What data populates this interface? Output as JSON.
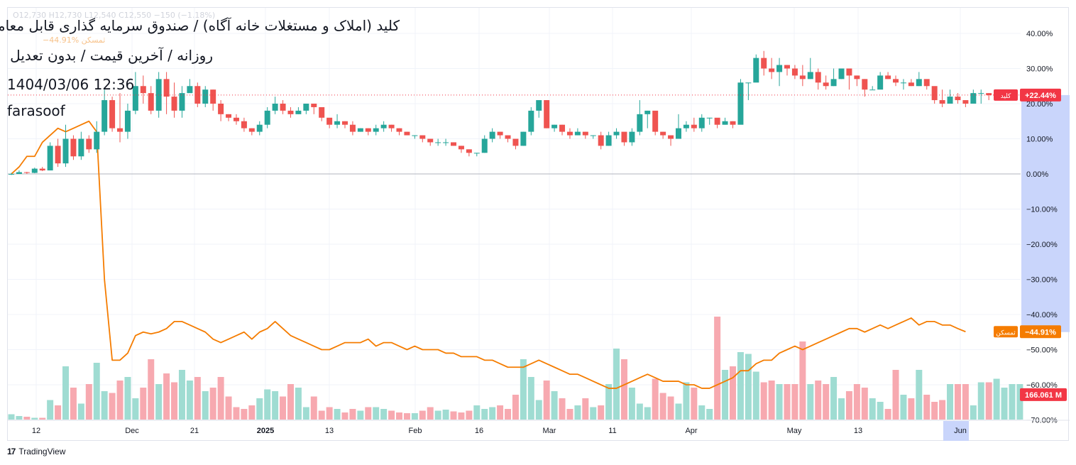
{
  "header": {
    "title": "کلید (املاک و مستغلات خانه آگاه) / صندوق سرمایه گذاری قابل معامله",
    "subtitle": "روزانه / آخرین قیمت / بدون تعدیل",
    "timestamp": "1404/03/06 12:36",
    "author": "farasoof",
    "ohlc_faded": "O12,730  H12,730  L12,540  C12,550  −150 (−1.18%)",
    "compare_faded": "−44.91%  ثمسکن"
  },
  "branding": {
    "name": "TradingView"
  },
  "colors": {
    "up": "#26a69a",
    "down": "#ef5350",
    "vol_up": "#9fdcd2",
    "vol_down": "#f7a9b0",
    "compare_line": "#f57c00",
    "badge_red": "#f23645",
    "badge_orange": "#f57c00",
    "shade": "#c9d5fb"
  },
  "chart_data": {
    "type": "candlestick",
    "y_axis": {
      "unit": "percent",
      "ylim": [
        -70,
        45
      ],
      "ticks": [
        "40.00%",
        "30.00%",
        "20.00%",
        "10.00%",
        "0.00%",
        "−10.00%",
        "−20.00%",
        "−30.00%",
        "−40.00%",
        "−50.00%",
        "−60.00%",
        "−70.00%"
      ]
    },
    "x_ticks": [
      "12",
      "Dec",
      "21",
      "2025",
      "13",
      "Feb",
      "16",
      "Mar",
      "11",
      "Apr",
      "May",
      "13",
      "Jun"
    ],
    "candles": [
      [
        0,
        0,
        0.3,
        -0.3
      ],
      [
        0,
        0.5,
        1,
        0
      ],
      [
        0.5,
        0.3,
        0.6,
        0
      ],
      [
        0.3,
        1.5,
        1.8,
        0.2
      ],
      [
        1.5,
        1,
        2,
        0.8
      ],
      [
        1,
        8,
        9,
        1
      ],
      [
        8,
        3,
        10,
        2
      ],
      [
        3,
        10,
        14,
        2
      ],
      [
        10,
        5,
        11,
        4
      ],
      [
        5,
        10,
        12,
        4
      ],
      [
        10,
        7,
        11,
        6
      ],
      [
        7,
        12,
        15,
        6
      ],
      [
        12,
        21,
        24,
        11
      ],
      [
        21,
        13,
        22,
        12
      ],
      [
        13,
        12,
        23,
        9
      ],
      [
        12,
        18,
        20,
        10
      ],
      [
        18,
        25,
        29,
        17
      ],
      [
        25,
        23,
        28,
        20
      ],
      [
        23,
        18,
        25,
        17
      ],
      [
        18,
        27,
        29,
        16
      ],
      [
        27,
        22,
        29,
        17
      ],
      [
        22,
        18,
        26,
        16
      ],
      [
        18,
        23,
        25,
        16
      ],
      [
        23,
        25,
        27,
        24
      ],
      [
        25,
        20,
        26,
        19
      ],
      [
        20,
        24,
        25,
        19
      ],
      [
        24,
        20,
        24,
        18
      ],
      [
        20,
        17,
        21,
        15
      ],
      [
        17,
        16,
        17,
        15
      ],
      [
        16,
        15,
        17,
        14
      ],
      [
        15,
        13,
        16,
        12
      ],
      [
        13,
        12,
        13,
        11
      ],
      [
        12,
        14,
        15,
        11
      ],
      [
        14,
        18,
        19,
        13
      ],
      [
        18,
        20,
        22,
        17
      ],
      [
        20,
        18,
        21,
        17
      ],
      [
        18,
        17,
        19,
        16
      ],
      [
        17,
        18,
        19,
        17
      ],
      [
        18,
        20,
        20,
        17
      ],
      [
        20,
        19,
        20,
        17
      ],
      [
        19,
        16,
        17,
        15
      ],
      [
        16,
        14,
        14,
        13
      ],
      [
        14,
        15,
        17,
        13
      ],
      [
        15,
        14,
        15,
        13
      ],
      [
        14,
        12,
        15,
        11
      ],
      [
        12,
        13,
        13,
        12
      ],
      [
        13,
        12,
        13,
        11
      ],
      [
        12,
        13,
        14,
        11
      ],
      [
        13,
        14,
        15,
        12
      ],
      [
        14,
        13,
        14,
        12
      ],
      [
        13,
        12,
        13,
        11
      ],
      [
        12,
        11,
        12,
        11
      ],
      [
        11,
        11,
        11,
        10
      ],
      [
        11,
        10,
        11,
        9
      ],
      [
        10,
        9,
        10,
        8
      ],
      [
        9,
        9,
        10,
        8
      ],
      [
        9,
        9,
        10,
        8
      ],
      [
        9,
        8,
        9,
        8
      ],
      [
        8,
        7,
        8,
        6
      ],
      [
        7,
        6,
        7,
        5
      ],
      [
        6,
        6,
        6,
        5
      ],
      [
        6,
        10,
        11,
        6
      ],
      [
        10,
        12,
        13,
        9
      ],
      [
        12,
        11,
        12,
        10
      ],
      [
        11,
        10,
        11,
        9
      ],
      [
        10,
        8,
        10,
        7
      ],
      [
        8,
        12,
        12,
        8
      ],
      [
        12,
        18,
        19,
        11
      ],
      [
        18,
        21,
        21,
        16
      ],
      [
        21,
        13,
        21,
        13
      ],
      [
        13,
        14,
        14,
        12
      ],
      [
        14,
        12,
        14,
        11
      ],
      [
        12,
        11,
        13,
        10
      ],
      [
        11,
        12,
        13,
        11
      ],
      [
        12,
        11,
        12,
        10
      ],
      [
        11,
        11,
        11,
        10
      ],
      [
        11,
        8,
        12,
        7
      ],
      [
        8,
        11,
        12,
        8
      ],
      [
        11,
        12,
        13,
        10
      ],
      [
        12,
        9,
        10,
        8
      ],
      [
        9,
        12,
        13,
        8
      ],
      [
        12,
        17,
        21,
        11
      ],
      [
        17,
        18,
        18,
        13
      ],
      [
        18,
        12,
        13,
        11
      ],
      [
        12,
        11,
        12,
        10
      ],
      [
        11,
        10,
        10,
        8
      ],
      [
        10,
        13,
        17,
        10
      ],
      [
        13,
        14,
        15,
        12
      ],
      [
        14,
        13,
        16,
        12
      ],
      [
        13,
        16,
        17,
        12
      ],
      [
        16,
        16,
        16,
        14
      ],
      [
        16,
        14,
        15,
        13
      ],
      [
        14,
        15,
        16,
        14
      ],
      [
        15,
        14,
        15,
        13
      ],
      [
        14,
        26,
        27,
        20
      ],
      [
        26,
        26,
        26,
        21
      ],
      [
        26,
        33,
        34,
        29
      ],
      [
        33,
        30,
        35,
        28
      ],
      [
        30,
        29,
        33,
        27
      ],
      [
        29,
        31,
        33,
        25
      ],
      [
        31,
        30,
        31,
        28
      ],
      [
        30,
        28,
        31,
        27
      ],
      [
        28,
        27,
        31,
        25
      ],
      [
        27,
        29,
        33,
        27
      ],
      [
        29,
        26,
        30,
        24
      ],
      [
        26,
        25,
        28,
        24
      ],
      [
        25,
        27,
        30,
        25
      ],
      [
        27,
        30,
        30,
        27
      ],
      [
        30,
        28,
        30,
        24
      ],
      [
        28,
        27,
        28,
        25
      ],
      [
        27,
        24,
        27,
        22
      ],
      [
        24,
        24,
        25,
        24
      ],
      [
        24,
        28,
        29,
        27
      ],
      [
        28,
        27,
        29,
        27
      ],
      [
        27,
        26,
        28,
        25
      ],
      [
        26,
        26,
        27,
        24
      ],
      [
        26,
        25,
        27,
        25
      ],
      [
        25,
        27,
        29,
        25
      ],
      [
        27,
        25,
        26,
        24
      ],
      [
        25,
        21,
        24,
        20
      ],
      [
        21,
        20,
        24,
        19
      ],
      [
        20,
        22,
        24,
        21
      ],
      [
        22,
        21,
        23,
        20
      ],
      [
        21,
        20,
        21,
        19
      ],
      [
        20,
        23,
        24,
        20
      ],
      [
        23,
        23,
        24,
        20
      ],
      [
        23,
        22.4,
        23,
        21
      ]
    ],
    "volume": [
      1.5,
      1,
      0.8,
      0.5,
      0.5,
      5.5,
      4,
      15,
      9,
      4.5,
      10,
      16,
      8,
      7.5,
      11,
      12,
      6,
      9,
      17,
      10,
      13,
      10.5,
      14,
      11,
      12,
      8,
      9,
      12,
      6.5,
      3.5,
      3,
      4,
      6,
      8.5,
      8,
      6.5,
      10,
      9,
      3.5,
      6.5,
      2.5,
      3.5,
      3,
      2,
      3,
      2.5,
      3.5,
      3.5,
      3,
      2.5,
      2,
      1.8,
      1.8,
      2.5,
      3.5,
      2.5,
      2.8,
      2.3,
      2,
      2.5,
      4,
      3,
      3.5,
      4,
      3,
      7,
      17,
      12,
      5.5,
      11,
      8,
      6,
      3,
      4,
      6,
      3.5,
      4,
      10,
      20,
      17,
      9,
      4.5,
      3.5,
      11.5,
      7.5,
      6.5,
      4.5,
      10.5,
      9,
      4,
      3,
      29,
      14,
      15,
      19,
      18.5,
      13.5,
      10.5,
      11,
      10,
      10,
      10,
      22,
      10,
      11,
      10,
      12,
      6,
      8,
      10,
      9,
      6,
      5,
      3,
      14,
      7,
      6,
      14,
      7,
      5,
      5.5,
      10,
      10,
      10,
      4,
      10.5,
      10.5,
      11.5,
      9,
      10,
      10
    ],
    "volume_last_label": "166.061 M",
    "compare_series": {
      "name": "ثمسکن",
      "last_value_label": "−44.91%",
      "y": [
        0,
        2,
        5,
        5,
        9,
        11,
        13,
        12,
        13,
        14,
        15,
        12,
        -30,
        -53,
        -53,
        -51,
        -46,
        -45,
        -45.5,
        -45,
        -44,
        -42,
        -42,
        -43,
        -44,
        -45,
        -47,
        -48,
        -47,
        -46,
        -45,
        -47,
        -45,
        -44,
        -42,
        -44,
        -46,
        -47,
        -48,
        -49,
        -50,
        -50,
        -49,
        -48,
        -48,
        -48,
        -47,
        -49,
        -48,
        -48,
        -49,
        -50,
        -49,
        -50,
        -50,
        -50,
        -51,
        -51,
        -52,
        -52,
        -52,
        -53,
        -53,
        -54,
        -55,
        -55,
        -55,
        -54,
        -53,
        -54,
        -55,
        -56,
        -57,
        -57,
        -58,
        -59,
        -60,
        -61,
        -61,
        -60,
        -59,
        -58,
        -57,
        -58,
        -59,
        -59,
        -59,
        -60,
        -60,
        -61,
        -61,
        -60,
        -59,
        -58,
        -56,
        -56,
        -54,
        -53,
        -53,
        -51,
        -50,
        -49,
        -50,
        -49,
        -48,
        -47,
        -46,
        -45,
        -44,
        -44,
        -45,
        -44,
        -43,
        -44,
        -43,
        -42,
        -41,
        -43,
        -42,
        -42,
        -43,
        -43,
        -44,
        -44.9
      ]
    },
    "current_value": 22.44,
    "current_label": "+22.44%",
    "symbol_tag": "کلید",
    "compare_tag": "ثمسکن",
    "grid": true,
    "zero_line": true
  }
}
